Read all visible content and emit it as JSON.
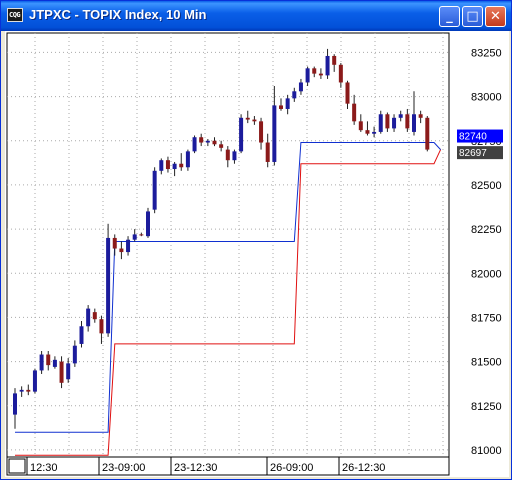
{
  "window": {
    "title": "JTPXC - TOPIX Index, 10 Min",
    "icon": "chart-app-icon",
    "icon_text": "CQG",
    "buttons": {
      "minimize": "_",
      "maximize": "□",
      "close": "✕"
    }
  },
  "chart_data": {
    "type": "candlestick",
    "title": "JTPXC - TOPIX Index, 10 Min",
    "ylim": [
      80960,
      83360
    ],
    "y_ticks": [
      83250,
      83000,
      82750,
      82500,
      82250,
      82000,
      81750,
      81500,
      81250,
      81000
    ],
    "x_tick_labels": [
      "12:30",
      "23-09:00",
      "23-12:30",
      "26-09:00",
      "26-12:30"
    ],
    "price_markers": [
      {
        "value": 82740,
        "label": "82740",
        "color": "#0000ff"
      },
      {
        "value": 82697,
        "label": "82697",
        "color": "#404040"
      }
    ],
    "up_color": "#1c1c9c",
    "down_color": "#8b1a1a",
    "candles": [
      [
        81200,
        81350,
        81120,
        81320
      ],
      [
        81330,
        81360,
        81300,
        81340
      ],
      [
        81340,
        81370,
        81310,
        81330
      ],
      [
        81330,
        81460,
        81320,
        81450
      ],
      [
        81450,
        81560,
        81430,
        81540
      ],
      [
        81540,
        81560,
        81450,
        81480
      ],
      [
        81470,
        81530,
        81460,
        81510
      ],
      [
        81500,
        81530,
        81350,
        81380
      ],
      [
        81400,
        81520,
        81380,
        81490
      ],
      [
        81490,
        81620,
        81470,
        81590
      ],
      [
        81600,
        81730,
        81580,
        81700
      ],
      [
        81700,
        81820,
        81670,
        81800
      ],
      [
        81780,
        81800,
        81720,
        81740
      ],
      [
        81740,
        81760,
        81600,
        81660
      ],
      [
        81660,
        82280,
        81640,
        82200
      ],
      [
        82200,
        82220,
        82100,
        82140
      ],
      [
        82140,
        82180,
        82080,
        82120
      ],
      [
        82120,
        82210,
        82100,
        82190
      ],
      [
        82190,
        82250,
        82180,
        82220
      ],
      [
        82220,
        82230,
        82210,
        82215
      ],
      [
        82210,
        82370,
        82200,
        82350
      ],
      [
        82360,
        82600,
        82340,
        82580
      ],
      [
        82580,
        82650,
        82560,
        82640
      ],
      [
        82640,
        82660,
        82570,
        82590
      ],
      [
        82590,
        82630,
        82550,
        82620
      ],
      [
        82620,
        82680,
        82580,
        82600
      ],
      [
        82600,
        82700,
        82580,
        82690
      ],
      [
        82690,
        82780,
        82680,
        82770
      ],
      [
        82770,
        82790,
        82720,
        82740
      ],
      [
        82740,
        82760,
        82720,
        82750
      ],
      [
        82750,
        82770,
        82720,
        82730
      ],
      [
        82730,
        82750,
        82690,
        82710
      ],
      [
        82700,
        82720,
        82600,
        82640
      ],
      [
        82640,
        82700,
        82620,
        82690
      ],
      [
        82690,
        82900,
        82680,
        82880
      ],
      [
        82880,
        82920,
        82850,
        82870
      ],
      [
        82870,
        82890,
        82840,
        82860
      ],
      [
        82860,
        82880,
        82700,
        82740
      ],
      [
        82740,
        82790,
        82600,
        82630
      ],
      [
        82630,
        83060,
        82610,
        82950
      ],
      [
        82950,
        82990,
        82920,
        82930
      ],
      [
        82930,
        83010,
        82900,
        82990
      ],
      [
        82990,
        83050,
        82970,
        83030
      ],
      [
        83030,
        83100,
        83010,
        83080
      ],
      [
        83080,
        83170,
        83060,
        83160
      ],
      [
        83160,
        83170,
        83110,
        83130
      ],
      [
        83130,
        83160,
        83100,
        83120
      ],
      [
        83120,
        83270,
        83100,
        83230
      ],
      [
        83230,
        83240,
        83140,
        83180
      ],
      [
        83180,
        83190,
        83050,
        83080
      ],
      [
        83080,
        83090,
        82930,
        82960
      ],
      [
        82960,
        83010,
        82840,
        82860
      ],
      [
        82860,
        82900,
        82800,
        82810
      ],
      [
        82810,
        82860,
        82780,
        82790
      ],
      [
        82790,
        82830,
        82770,
        82800
      ],
      [
        82800,
        82920,
        82790,
        82900
      ],
      [
        82900,
        82910,
        82800,
        82820
      ],
      [
        82820,
        82900,
        82800,
        82880
      ],
      [
        82880,
        82920,
        82860,
        82900
      ],
      [
        82900,
        82930,
        82800,
        82820
      ],
      [
        82800,
        83030,
        82780,
        82900
      ],
      [
        82900,
        82920,
        82850,
        82880
      ],
      [
        82880,
        82890,
        82690,
        82700
      ]
    ],
    "blue_band": [
      [
        0,
        81100
      ],
      [
        14,
        81100
      ],
      [
        15,
        82180
      ],
      [
        42,
        82180
      ],
      [
        43,
        82740
      ],
      [
        63,
        82740
      ],
      [
        64,
        82700
      ]
    ],
    "red_band": [
      [
        0,
        80970
      ],
      [
        14,
        80970
      ],
      [
        15,
        81600
      ],
      [
        42,
        81600
      ],
      [
        43,
        82620
      ],
      [
        63,
        82620
      ],
      [
        64,
        82700
      ]
    ],
    "grid": true
  }
}
